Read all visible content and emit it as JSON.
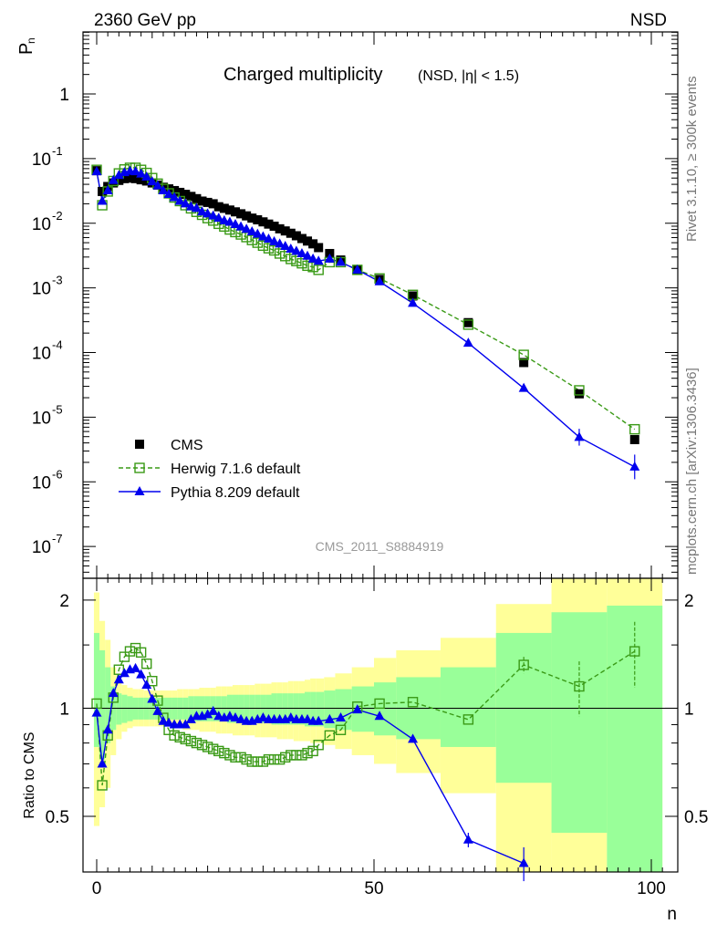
{
  "header": {
    "left": "2360 GeV pp",
    "right": "NSD"
  },
  "title_main": "Charged multiplicity",
  "title_sub": "(NSD, |η| < 1.5)",
  "watermark": "CMS_2011_S8884919",
  "side_text_top": "Rivet 3.1.10, ≥ 300k events",
  "side_text_bottom": "mcplots.cern.ch [arXiv:1306.3436]",
  "colors": {
    "cms": "#000000",
    "herwig": "#3a9a16",
    "pythia": "#0000ee",
    "band_outer": "#ffff99",
    "band_inner": "#99ff99"
  },
  "chart_data": [
    {
      "type": "scatter",
      "panel": "main",
      "ylabel": "P_n",
      "yscale": "log",
      "ylim": [
        1e-08,
        1
      ],
      "xlim": [
        -3,
        103
      ],
      "ytick_labels": [
        "10^-7",
        "10^-6",
        "10^-5",
        "10^-4",
        "10^-3",
        "10^-2",
        "10^-1",
        "1"
      ],
      "legend_position": "lower-left",
      "series": [
        {
          "name": "CMS",
          "marker": "square",
          "x": [
            0,
            1,
            2,
            3,
            4,
            5,
            6,
            7,
            8,
            9,
            10,
            11,
            12,
            13,
            14,
            15,
            16,
            17,
            18,
            19,
            20,
            21,
            22,
            23,
            24,
            25,
            26,
            27,
            28,
            29,
            30,
            31,
            32,
            33,
            34,
            35,
            36,
            37,
            38,
            39,
            40,
            42,
            44,
            47,
            51,
            57,
            67,
            77,
            87,
            97
          ],
          "y": [
            0.065,
            0.031,
            0.037,
            0.042,
            0.046,
            0.049,
            0.05,
            0.049,
            0.047,
            0.045,
            0.042,
            0.039,
            0.036,
            0.034,
            0.032,
            0.03,
            0.028,
            0.026,
            0.024,
            0.022,
            0.021,
            0.02,
            0.018,
            0.017,
            0.016,
            0.015,
            0.014,
            0.013,
            0.012,
            0.0113,
            0.0105,
            0.0097,
            0.009,
            0.0082,
            0.0076,
            0.007,
            0.0064,
            0.0058,
            0.0053,
            0.0048,
            0.0042,
            0.0034,
            0.0027,
            0.0019,
            0.00135,
            0.00075,
            0.00029,
            7e-05,
            2.3e-05,
            4.5e-06
          ]
        },
        {
          "name": "Herwig 7.1.6 default",
          "marker": "open-square",
          "line": "dashed",
          "x": [
            0,
            1,
            2,
            3,
            4,
            5,
            6,
            7,
            8,
            9,
            10,
            11,
            12,
            13,
            14,
            15,
            16,
            17,
            18,
            19,
            20,
            21,
            22,
            23,
            24,
            25,
            26,
            27,
            28,
            29,
            30,
            31,
            32,
            33,
            34,
            35,
            36,
            37,
            38,
            39,
            40,
            42,
            44,
            47,
            51,
            57,
            67,
            77,
            87,
            97
          ],
          "y": [
            0.067,
            0.019,
            0.031,
            0.045,
            0.059,
            0.068,
            0.072,
            0.072,
            0.067,
            0.06,
            0.05,
            0.041,
            0.034,
            0.029,
            0.025,
            0.022,
            0.019,
            0.017,
            0.015,
            0.0135,
            0.012,
            0.011,
            0.0098,
            0.0089,
            0.008,
            0.0073,
            0.0067,
            0.0061,
            0.0055,
            0.005,
            0.0045,
            0.0041,
            0.0038,
            0.0034,
            0.0031,
            0.0028,
            0.0026,
            0.0024,
            0.0022,
            0.0021,
            0.0019,
            0.0025,
            0.0025,
            0.0019,
            0.0014,
            0.00078,
            0.00027,
            9.2e-05,
            2.6e-05,
            6.5e-06
          ]
        },
        {
          "name": "Pythia 8.209 default",
          "marker": "triangle",
          "line": "solid",
          "x": [
            0,
            1,
            2,
            3,
            4,
            5,
            6,
            7,
            8,
            9,
            10,
            11,
            12,
            13,
            14,
            15,
            16,
            17,
            18,
            19,
            20,
            21,
            22,
            23,
            24,
            25,
            26,
            27,
            28,
            29,
            30,
            31,
            32,
            33,
            34,
            35,
            36,
            37,
            38,
            39,
            40,
            42,
            44,
            47,
            51,
            57,
            67,
            77,
            87,
            97
          ],
          "y": [
            0.063,
            0.022,
            0.032,
            0.046,
            0.055,
            0.061,
            0.064,
            0.063,
            0.058,
            0.052,
            0.044,
            0.038,
            0.032,
            0.028,
            0.025,
            0.022,
            0.02,
            0.018,
            0.017,
            0.015,
            0.014,
            0.013,
            0.012,
            0.011,
            0.0104,
            0.0096,
            0.0088,
            0.0081,
            0.0074,
            0.0068,
            0.0062,
            0.0057,
            0.0052,
            0.0048,
            0.0044,
            0.004,
            0.0037,
            0.0034,
            0.0031,
            0.0028,
            0.0026,
            0.0028,
            0.0025,
            0.0019,
            0.00125,
            0.00058,
            0.00014,
            2.8e-05,
            4.9e-06,
            1.7e-06
          ]
        }
      ]
    },
    {
      "type": "scatter",
      "panel": "ratio",
      "ylabel": "Ratio to CMS",
      "xlabel": "n",
      "ylim": [
        0.35,
        2.3
      ],
      "xlim": [
        -3,
        103
      ],
      "yticks": [
        0.5,
        1,
        2
      ],
      "xticks": [
        0,
        50,
        100
      ],
      "series": [
        {
          "name": "Herwig 7.1.6 default",
          "x": [
            0,
            1,
            2,
            3,
            4,
            5,
            6,
            7,
            8,
            9,
            10,
            11,
            12,
            13,
            14,
            15,
            16,
            17,
            18,
            19,
            20,
            21,
            22,
            23,
            24,
            25,
            26,
            27,
            28,
            29,
            30,
            31,
            32,
            33,
            34,
            35,
            36,
            37,
            38,
            39,
            40,
            42,
            44,
            47,
            51,
            57,
            67,
            77,
            87,
            97
          ],
          "y": [
            1.03,
            0.61,
            0.84,
            1.07,
            1.28,
            1.39,
            1.44,
            1.47,
            1.43,
            1.33,
            1.19,
            1.05,
            0.94,
            0.87,
            0.84,
            0.83,
            0.82,
            0.81,
            0.8,
            0.79,
            0.78,
            0.77,
            0.76,
            0.75,
            0.74,
            0.73,
            0.73,
            0.72,
            0.71,
            0.71,
            0.71,
            0.72,
            0.72,
            0.72,
            0.73,
            0.74,
            0.74,
            0.74,
            0.75,
            0.76,
            0.79,
            0.84,
            0.87,
            1.01,
            1.03,
            1.04,
            0.93,
            1.32,
            1.15,
            1.44
          ]
        },
        {
          "name": "Pythia 8.209 default",
          "x": [
            0,
            1,
            2,
            3,
            4,
            5,
            6,
            7,
            8,
            9,
            10,
            11,
            12,
            13,
            14,
            15,
            16,
            17,
            18,
            19,
            20,
            21,
            22,
            23,
            24,
            25,
            26,
            27,
            28,
            29,
            30,
            31,
            32,
            33,
            34,
            35,
            36,
            37,
            38,
            39,
            40,
            42,
            44,
            47,
            51,
            57,
            67,
            77,
            87,
            97
          ],
          "y": [
            0.97,
            0.7,
            0.87,
            1.1,
            1.2,
            1.25,
            1.28,
            1.29,
            1.24,
            1.16,
            1.06,
            0.98,
            0.92,
            0.91,
            0.9,
            0.9,
            0.9,
            0.93,
            0.95,
            0.95,
            0.96,
            0.98,
            0.95,
            0.94,
            0.95,
            0.94,
            0.93,
            0.92,
            0.92,
            0.93,
            0.94,
            0.93,
            0.93,
            0.93,
            0.93,
            0.94,
            0.93,
            0.93,
            0.93,
            0.92,
            0.92,
            0.93,
            0.94,
            0.99,
            0.95,
            0.82,
            0.43,
            0.37,
            null,
            null
          ]
        }
      ],
      "bands": {
        "x_edges": [
          -0.5,
          0.5,
          1.5,
          2.5,
          3.5,
          4.5,
          5.5,
          6.5,
          7.5,
          8.5,
          9.5,
          10.5,
          11.5,
          12.5,
          13.5,
          14.5,
          15.5,
          16.5,
          17.5,
          18.5,
          19.5,
          20.5,
          21.5,
          22.5,
          23.5,
          24.5,
          25.5,
          26.5,
          27.5,
          28.5,
          29.5,
          30.5,
          31.5,
          32.5,
          33.5,
          34.5,
          35.5,
          36.5,
          37.5,
          38.5,
          39.5,
          41,
          43,
          46,
          50,
          54,
          62,
          72,
          82,
          92,
          102
        ],
        "outer_lo": [
          0.47,
          0.53,
          0.6,
          0.74,
          0.82,
          0.86,
          0.88,
          0.89,
          0.89,
          0.89,
          0.89,
          0.89,
          0.89,
          0.89,
          0.88,
          0.88,
          0.87,
          0.87,
          0.87,
          0.86,
          0.86,
          0.86,
          0.85,
          0.85,
          0.85,
          0.84,
          0.84,
          0.84,
          0.84,
          0.83,
          0.83,
          0.83,
          0.83,
          0.82,
          0.82,
          0.82,
          0.81,
          0.81,
          0.81,
          0.8,
          0.8,
          0.79,
          0.77,
          0.74,
          0.7,
          0.66,
          0.58,
          0.35,
          0.35,
          0.35
        ],
        "outer_hi": [
          2.1,
          1.75,
          1.55,
          1.3,
          1.2,
          1.16,
          1.14,
          1.13,
          1.13,
          1.12,
          1.12,
          1.12,
          1.12,
          1.12,
          1.12,
          1.13,
          1.13,
          1.13,
          1.13,
          1.14,
          1.14,
          1.14,
          1.15,
          1.15,
          1.15,
          1.16,
          1.16,
          1.16,
          1.16,
          1.17,
          1.17,
          1.17,
          1.18,
          1.18,
          1.18,
          1.19,
          1.19,
          1.19,
          1.2,
          1.21,
          1.21,
          1.22,
          1.25,
          1.3,
          1.38,
          1.45,
          1.57,
          1.95,
          2.3,
          2.3
        ],
        "inner_lo": [
          0.78,
          0.72,
          0.8,
          0.87,
          0.9,
          0.91,
          0.92,
          0.93,
          0.93,
          0.93,
          0.93,
          0.93,
          0.93,
          0.93,
          0.93,
          0.93,
          0.93,
          0.92,
          0.92,
          0.92,
          0.92,
          0.92,
          0.92,
          0.92,
          0.91,
          0.91,
          0.91,
          0.91,
          0.91,
          0.91,
          0.91,
          0.91,
          0.9,
          0.9,
          0.9,
          0.9,
          0.9,
          0.9,
          0.89,
          0.89,
          0.89,
          0.88,
          0.87,
          0.86,
          0.84,
          0.82,
          0.78,
          0.62,
          0.45,
          0.35
        ],
        "inner_hi": [
          1.62,
          1.45,
          1.3,
          1.15,
          1.1,
          1.09,
          1.08,
          1.07,
          1.07,
          1.07,
          1.07,
          1.07,
          1.07,
          1.07,
          1.07,
          1.07,
          1.07,
          1.08,
          1.08,
          1.08,
          1.08,
          1.08,
          1.08,
          1.08,
          1.09,
          1.09,
          1.09,
          1.09,
          1.09,
          1.09,
          1.09,
          1.09,
          1.1,
          1.1,
          1.1,
          1.1,
          1.1,
          1.1,
          1.11,
          1.11,
          1.11,
          1.12,
          1.13,
          1.15,
          1.18,
          1.22,
          1.3,
          1.62,
          1.85,
          1.93
        ]
      }
    }
  ]
}
